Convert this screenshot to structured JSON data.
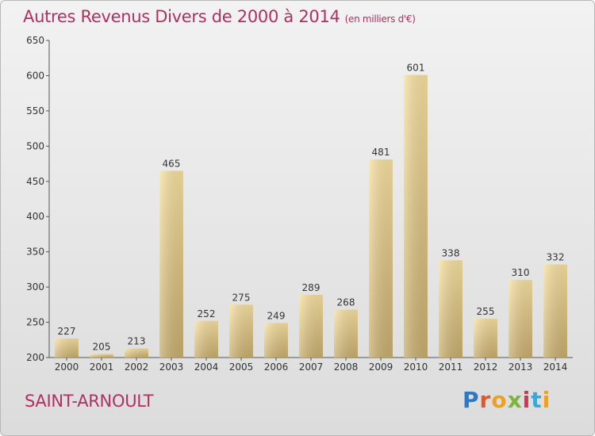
{
  "header": {
    "title": "Autres Revenus Divers de 2000 à 2014",
    "subtitle": "(en milliers d'€)"
  },
  "footer": {
    "commune": "SAINT-ARNOULT",
    "logo_text": "Proxiti",
    "logo_colors": [
      "#2f78c4",
      "#e8542a",
      "#f0a020",
      "#7cb53a",
      "#d8324f",
      "#3aa8d8",
      "#f0a020"
    ]
  },
  "chart_data": {
    "type": "bar",
    "title": "Autres Revenus Divers de 2000 à 2014",
    "subtitle": "(en milliers d'€)",
    "categories": [
      "2000",
      "2001",
      "2002",
      "2003",
      "2004",
      "2005",
      "2006",
      "2007",
      "2008",
      "2009",
      "2010",
      "2011",
      "2012",
      "2013",
      "2014"
    ],
    "values": [
      227,
      205,
      213,
      465,
      252,
      275,
      249,
      289,
      268,
      481,
      601,
      338,
      255,
      310,
      332
    ],
    "ylim": [
      200,
      650
    ],
    "yticks": [
      200,
      250,
      300,
      350,
      400,
      450,
      500,
      550,
      600,
      650
    ],
    "grid": false,
    "legend": "none",
    "bar_color_top": "#f7e0a0",
    "bar_color_bottom": "#c8ad6e",
    "title_color": "#b03060"
  }
}
